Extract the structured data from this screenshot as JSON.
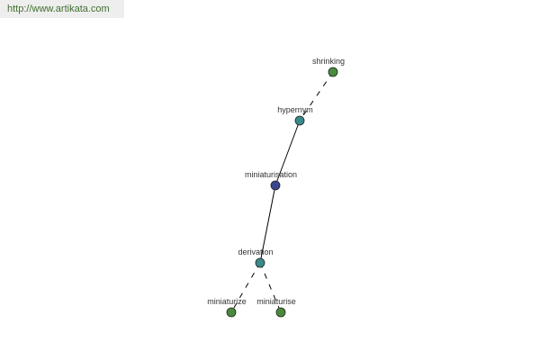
{
  "header": {
    "url": "http://www.artikata.com"
  },
  "colors": {
    "synonym": "#4a8a3c",
    "related": "#3a8a8a",
    "main": "#3a4590"
  },
  "nodes": [
    {
      "id": "shrinking",
      "label": "shrinking",
      "kind": "synonym"
    },
    {
      "id": "hypernym",
      "label": "hypernym",
      "kind": "related"
    },
    {
      "id": "miniaturisation",
      "label": "miniaturisation",
      "kind": "main"
    },
    {
      "id": "derivation",
      "label": "derivation",
      "kind": "related"
    },
    {
      "id": "miniaturize",
      "label": "miniaturize",
      "kind": "synonym"
    },
    {
      "id": "miniaturise",
      "label": "miniaturise",
      "kind": "synonym"
    }
  ],
  "edges": [
    {
      "from": "shrinking",
      "to": "hypernym",
      "style": "dashed"
    },
    {
      "from": "hypernym",
      "to": "miniaturisation",
      "style": "solid"
    },
    {
      "from": "miniaturisation",
      "to": "derivation",
      "style": "solid"
    },
    {
      "from": "derivation",
      "to": "miniaturize",
      "style": "dashed"
    },
    {
      "from": "derivation",
      "to": "miniaturise",
      "style": "dashed"
    }
  ]
}
